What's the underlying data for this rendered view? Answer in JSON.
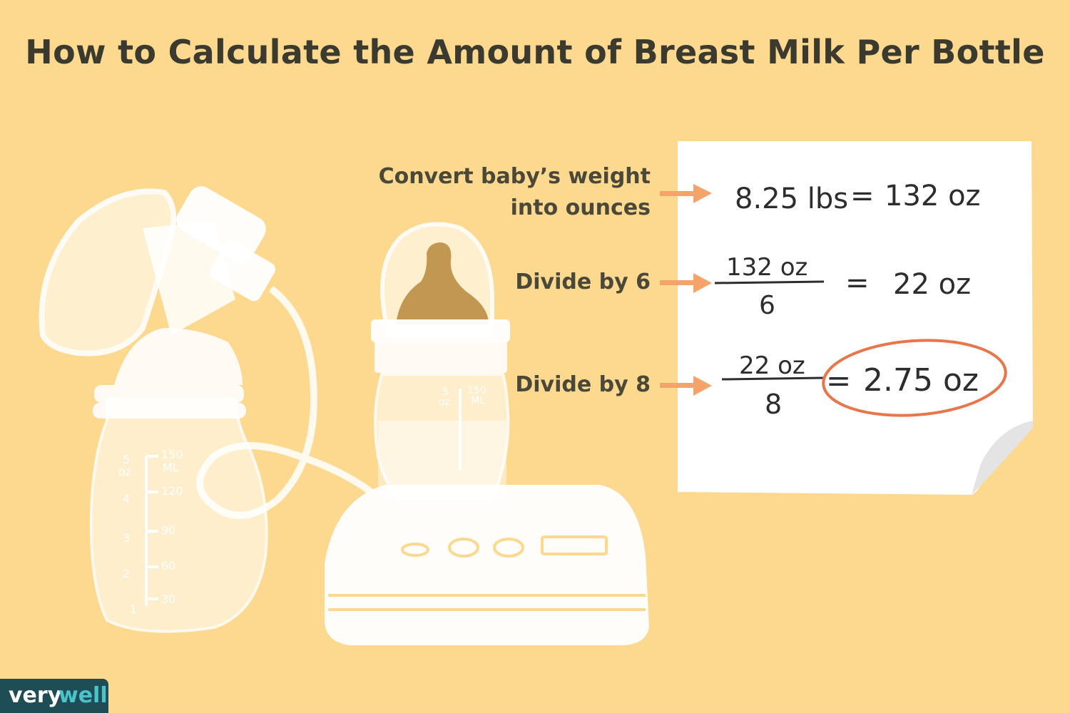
{
  "title": "How to Calculate the Amount of Breast Milk Per Bottle",
  "steps": [
    {
      "label_line1": "Convert baby’s weight",
      "label_line2": "into ounces",
      "expr_left": "8.25 lbs",
      "equals": "=",
      "expr_right": "132 oz"
    },
    {
      "label_line1": "Divide by 6",
      "numerator": "132 oz",
      "denominator": "6",
      "equals": "=",
      "result": "22 oz"
    },
    {
      "label_line1": "Divide by 8",
      "numerator": "22 oz",
      "denominator": "8",
      "equals": "=",
      "result": "2.75 oz"
    }
  ],
  "bottle_marks": {
    "left": {
      "oz": [
        "5",
        "4",
        "3",
        "2",
        "1"
      ],
      "oz_unit": "oz",
      "ml": [
        "150",
        "120",
        "90",
        "60",
        "30"
      ],
      "ml_unit": "ML"
    },
    "right": {
      "oz": [
        "5"
      ],
      "oz_unit": "oz",
      "ml": [
        "150"
      ],
      "ml_unit": "ML"
    }
  },
  "brand": {
    "part1": "very",
    "part2": "well"
  },
  "colors": {
    "background": "#fdd88f",
    "arrow": "#f4a46b",
    "highlight_circle": "#e8764a",
    "brand_bg": "#1f4d55",
    "brand_accent": "#4cc3c9"
  }
}
